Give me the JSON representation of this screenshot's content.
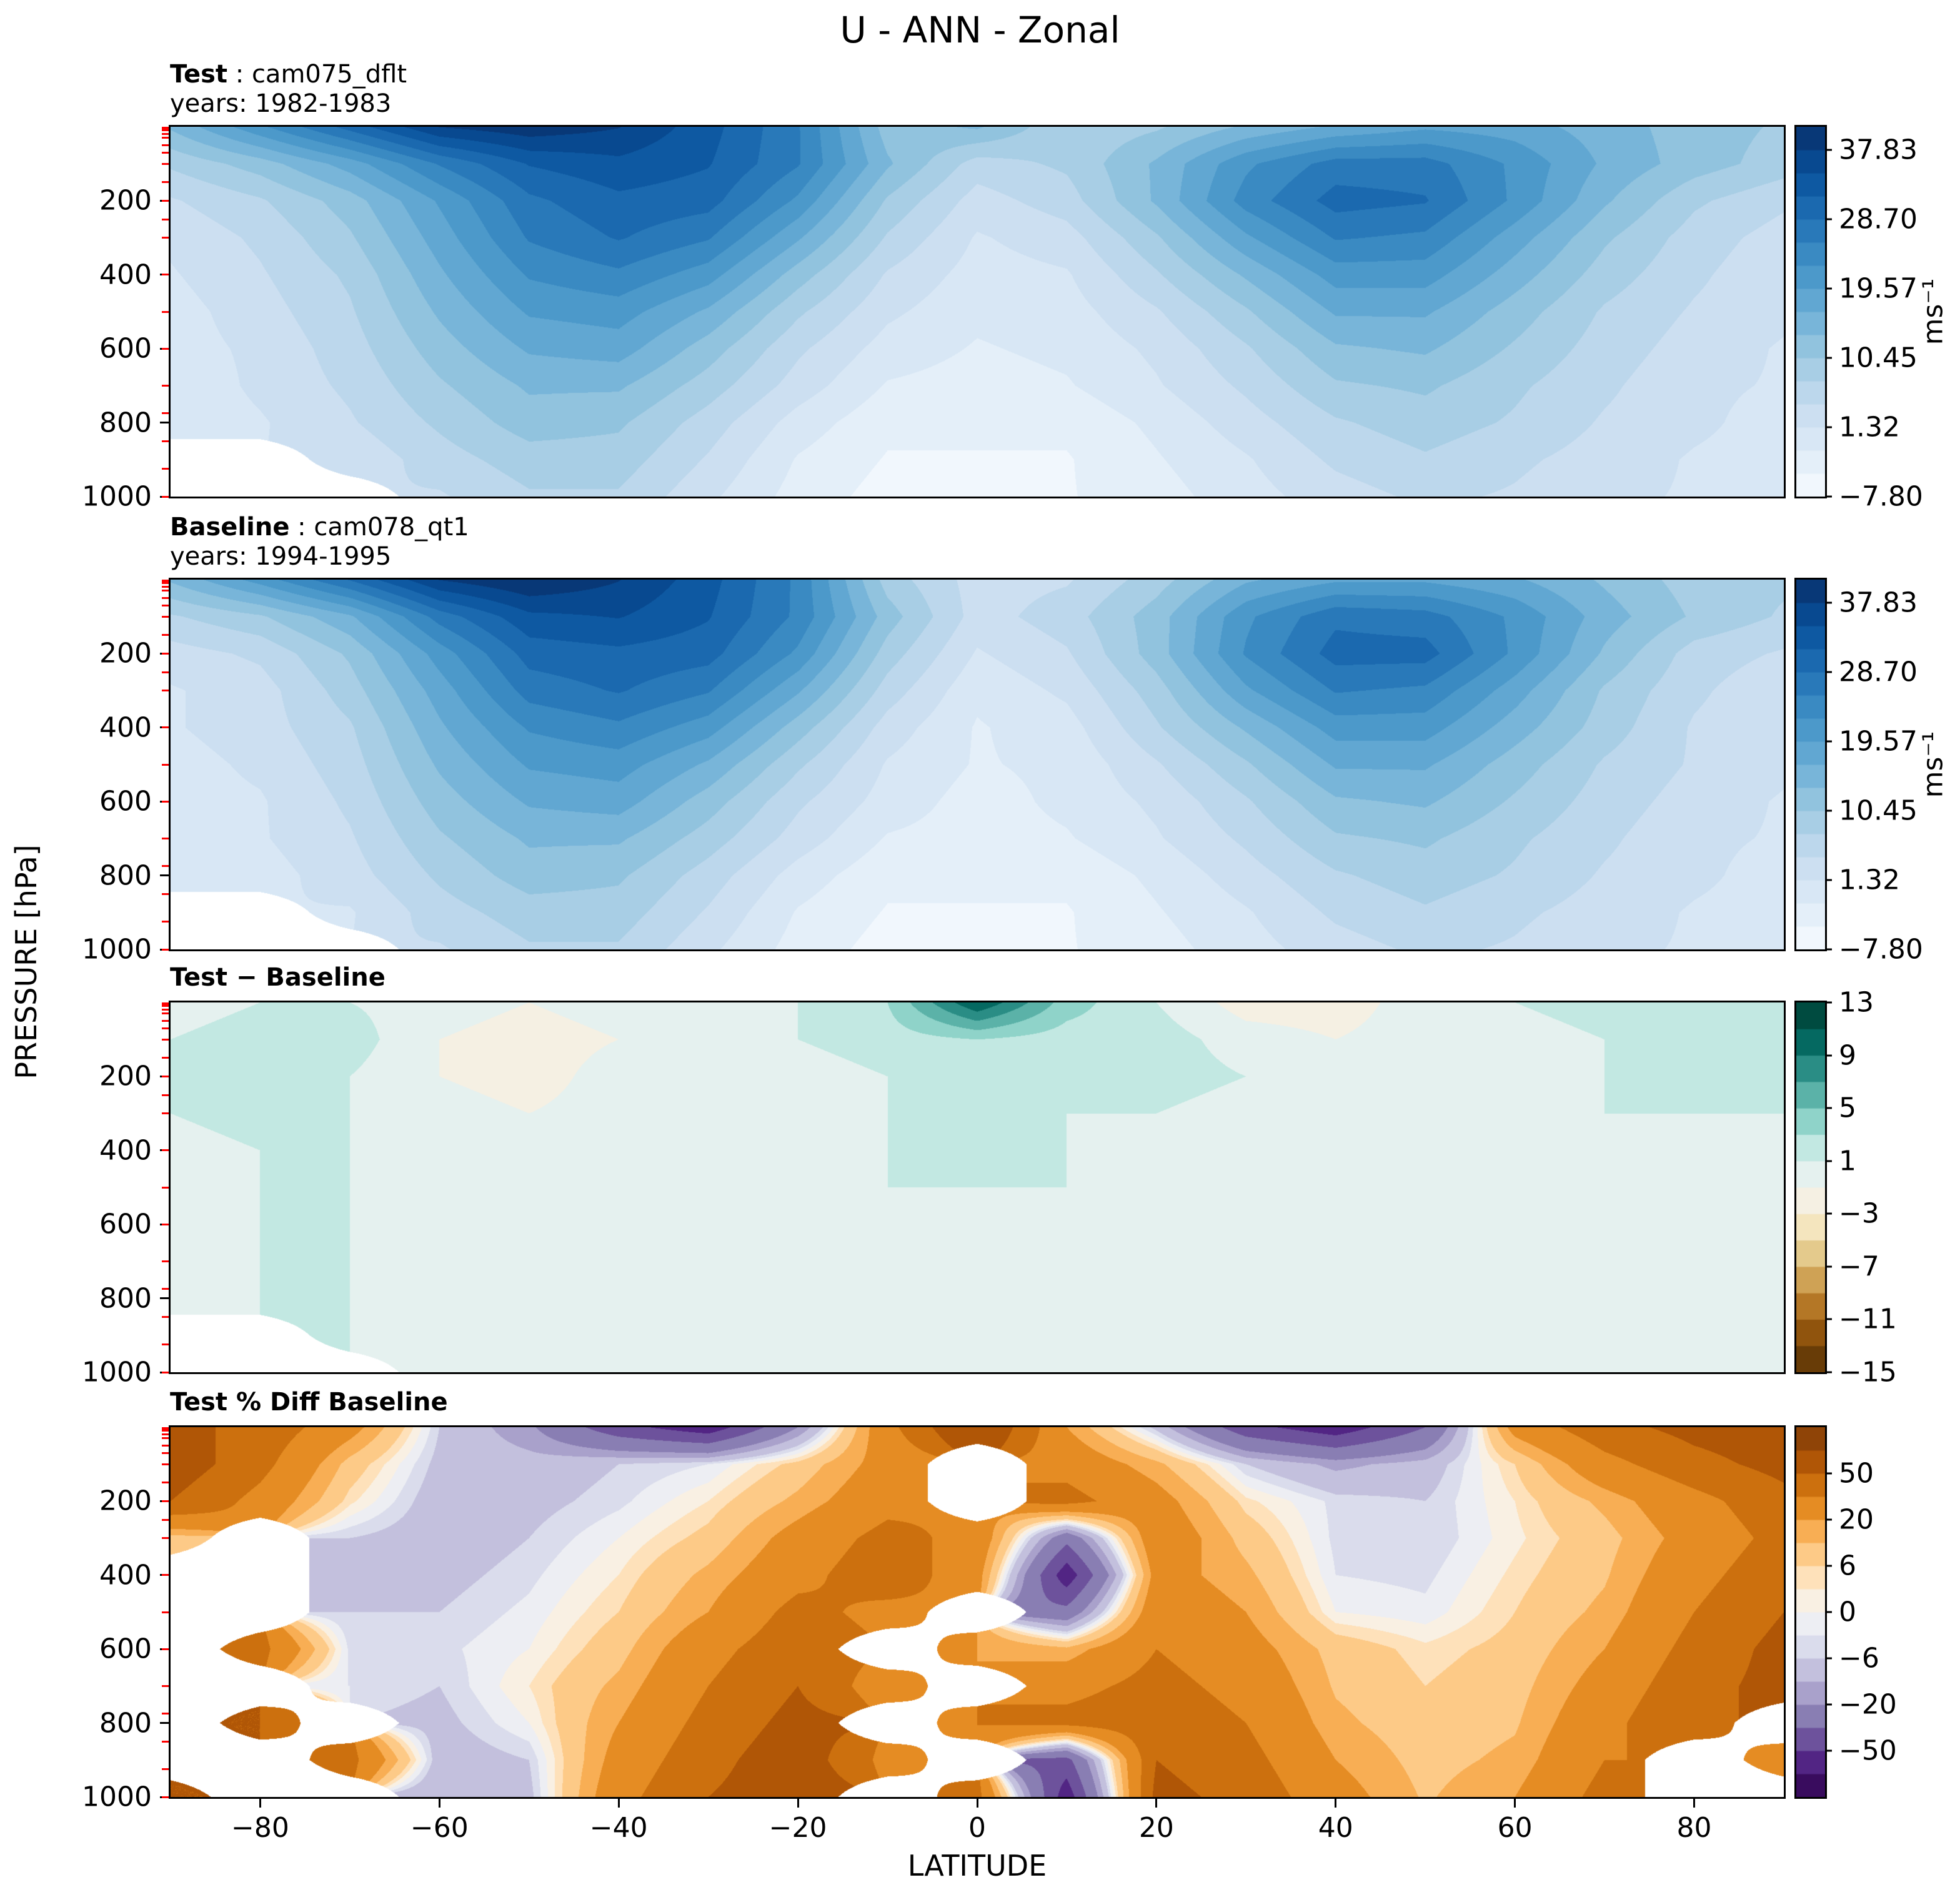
{
  "title": "U - ANN - Zonal",
  "axis": {
    "x_label": "LATITUDE",
    "y_label": "PRESSURE [hPa]",
    "x_range": [
      -90,
      90
    ],
    "y_range": [
      0,
      1000
    ],
    "x_ticks": [
      {
        "v": -80,
        "label": "−80"
      },
      {
        "v": -60,
        "label": "−60"
      },
      {
        "v": -40,
        "label": "−40"
      },
      {
        "v": -20,
        "label": "−20"
      },
      {
        "v": 0,
        "label": "0"
      },
      {
        "v": 20,
        "label": "20"
      },
      {
        "v": 40,
        "label": "40"
      },
      {
        "v": 60,
        "label": "60"
      },
      {
        "v": 80,
        "label": "80"
      }
    ],
    "y_ticks": [
      {
        "v": 200,
        "label": "200"
      },
      {
        "v": 400,
        "label": "400"
      },
      {
        "v": 600,
        "label": "600"
      },
      {
        "v": 800,
        "label": "800"
      },
      {
        "v": 1000,
        "label": "1000"
      }
    ],
    "red_tick_pressures": [
      1,
      2,
      3,
      5,
      7,
      10,
      20,
      30,
      50,
      70,
      100,
      150,
      200,
      250,
      300,
      400,
      500,
      600,
      700,
      775,
      850,
      925,
      1000
    ]
  },
  "colors": {
    "model_level_tick": "#ff0000",
    "axis": "#000000",
    "background": "#ffffff"
  },
  "colormaps": {
    "blues": [
      "#f7fbff",
      "#deebf7",
      "#c6dbef",
      "#9ecae1",
      "#6baed6",
      "#4292c6",
      "#2171b5",
      "#08519c",
      "#08306b"
    ],
    "brbg": [
      "#543005",
      "#8c510a",
      "#bf812d",
      "#dfc27d",
      "#f6e8c3",
      "#f5f5f5",
      "#c7eae5",
      "#80cdc1",
      "#35978f",
      "#01665e",
      "#003c30"
    ],
    "puor_r": [
      "#2d004b",
      "#542788",
      "#8073ac",
      "#b2abd2",
      "#d8daeb",
      "#f7f7f7",
      "#fee0b6",
      "#fdb863",
      "#e08214",
      "#b35806",
      "#7f3b08"
    ]
  },
  "chart_data": [
    {
      "id": "test",
      "type": "heatmap",
      "style": "filled-contour",
      "header_bold": "Test",
      "header_rest": " : cam075_dflt",
      "subheader": "years: 1982-1983",
      "colormap": "blues",
      "levels_min": -7.8,
      "levels_max": 40.89,
      "n_bands": 16,
      "colorbar_ticks": [
        {
          "v": 37.83,
          "label": "37.83"
        },
        {
          "v": 28.7,
          "label": "28.70"
        },
        {
          "v": 19.57,
          "label": "19.57"
        },
        {
          "v": 10.45,
          "label": "10.45"
        },
        {
          "v": 1.32,
          "label": "1.32"
        },
        {
          "v": -7.8,
          "label": "−7.80"
        }
      ],
      "colorbar_unit": "ms⁻¹",
      "show_x_ticks": false,
      "lats": [
        -90,
        -80,
        -70,
        -60,
        -50,
        -40,
        -30,
        -20,
        -10,
        0,
        10,
        20,
        30,
        40,
        50,
        60,
        70,
        80,
        90
      ],
      "pressures": [
        0,
        100,
        200,
        300,
        400,
        500,
        600,
        700,
        800,
        900,
        1000
      ],
      "values": [
        [
          14,
          22,
          30,
          38,
          40,
          38,
          33,
          26,
          12,
          14,
          8,
          10,
          14,
          17,
          19,
          18,
          15,
          12,
          10
        ],
        [
          8,
          12,
          18,
          26,
          32,
          34,
          32,
          26,
          14,
          6,
          8,
          14,
          22,
          27,
          27,
          22,
          16,
          12,
          9
        ],
        [
          4,
          7,
          12,
          20,
          28,
          31,
          30,
          22,
          10,
          3,
          6,
          14,
          24,
          30,
          29,
          22,
          14,
          8,
          5
        ],
        [
          2,
          5,
          10,
          18,
          26,
          29,
          26,
          17,
          7,
          1,
          3,
          10,
          19,
          26,
          25,
          18,
          11,
          6,
          3
        ],
        [
          1,
          4,
          8,
          16,
          23,
          25,
          21,
          12,
          4,
          0,
          1,
          7,
          14,
          21,
          21,
          15,
          9,
          5,
          2
        ],
        [
          0,
          3,
          7,
          14,
          20,
          21,
          16,
          8,
          2,
          -1,
          0,
          4,
          10,
          17,
          17,
          12,
          7,
          4,
          2
        ],
        [
          0,
          2,
          6,
          12,
          17,
          18,
          12,
          5,
          0,
          -2,
          -1,
          2,
          7,
          13,
          14,
          10,
          6,
          3,
          1
        ],
        [
          -1,
          2,
          5,
          10,
          14,
          14,
          9,
          3,
          -2,
          -3,
          -2,
          1,
          5,
          10,
          11,
          8,
          5,
          2,
          1
        ],
        [
          -1,
          1,
          4,
          8,
          12,
          11,
          6,
          0,
          -4,
          -4,
          -4,
          -1,
          3,
          7,
          9,
          7,
          4,
          2,
          0
        ],
        [
          null,
          null,
          2,
          6,
          9,
          9,
          4,
          -2,
          -5,
          -5,
          -5,
          -2,
          1,
          5,
          7,
          5,
          3,
          1,
          0
        ],
        [
          null,
          null,
          null,
          4,
          7,
          7,
          2,
          -3,
          -6,
          -5,
          -5,
          -3,
          0,
          3,
          5,
          4,
          2,
          1,
          -1
        ]
      ]
    },
    {
      "id": "baseline",
      "type": "heatmap",
      "style": "filled-contour",
      "header_bold": "Baseline",
      "header_rest": " : cam078_qt1",
      "subheader": "years: 1994-1995",
      "colormap": "blues",
      "levels_min": -7.8,
      "levels_max": 40.89,
      "n_bands": 16,
      "colorbar_ticks": [
        {
          "v": 37.83,
          "label": "37.83"
        },
        {
          "v": 28.7,
          "label": "28.70"
        },
        {
          "v": 19.57,
          "label": "19.57"
        },
        {
          "v": 10.45,
          "label": "10.45"
        },
        {
          "v": 1.32,
          "label": "1.32"
        },
        {
          "v": -7.8,
          "label": "−7.80"
        }
      ],
      "colorbar_unit": "ms⁻¹",
      "show_x_ticks": false,
      "lats": [
        -90,
        -80,
        -70,
        -60,
        -50,
        -40,
        -30,
        -20,
        -10,
        0,
        10,
        20,
        30,
        40,
        50,
        60,
        70,
        80,
        90
      ],
      "pressures": [
        0,
        100,
        200,
        300,
        400,
        500,
        600,
        700,
        800,
        900,
        1000
      ],
      "values": [
        [
          14,
          21,
          29,
          38,
          41,
          38,
          33,
          25,
          9,
          3,
          4,
          9,
          16,
          19,
          19,
          17,
          13,
          9,
          8
        ],
        [
          7,
          10,
          16,
          27,
          34,
          35,
          32,
          25,
          12,
          3,
          6,
          12,
          22,
          28,
          27,
          22,
          15,
          10,
          7
        ],
        [
          3,
          5,
          11,
          21,
          30,
          31,
          30,
          22,
          9,
          1,
          4,
          12,
          23,
          30,
          30,
          22,
          13,
          6,
          4
        ],
        [
          1,
          3,
          9,
          18,
          27,
          29,
          26,
          17,
          6,
          -1,
          2,
          9,
          19,
          26,
          25,
          18,
          10,
          5,
          2
        ],
        [
          1,
          3,
          7,
          16,
          23,
          25,
          21,
          12,
          3,
          -2,
          0,
          7,
          14,
          21,
          21,
          15,
          9,
          4,
          2
        ],
        [
          0,
          2,
          6,
          14,
          20,
          21,
          16,
          8,
          1,
          -2,
          -1,
          4,
          10,
          17,
          17,
          12,
          7,
          4,
          2
        ],
        [
          0,
          1,
          5,
          12,
          17,
          18,
          12,
          5,
          0,
          -3,
          -1,
          2,
          7,
          13,
          14,
          10,
          6,
          3,
          1
        ],
        [
          -1,
          1,
          4,
          10,
          14,
          14,
          9,
          3,
          -2,
          -3,
          -2,
          1,
          5,
          10,
          11,
          8,
          5,
          2,
          1
        ],
        [
          -1,
          0,
          3,
          8,
          12,
          11,
          6,
          0,
          -4,
          -4,
          -4,
          -1,
          3,
          7,
          9,
          7,
          4,
          2,
          0
        ],
        [
          null,
          null,
          1,
          6,
          9,
          9,
          4,
          -2,
          -5,
          -5,
          -5,
          -2,
          1,
          5,
          7,
          5,
          3,
          1,
          0
        ],
        [
          null,
          null,
          null,
          4,
          7,
          7,
          2,
          -3,
          -6,
          -5,
          -5,
          -3,
          0,
          3,
          5,
          4,
          2,
          1,
          -1
        ]
      ]
    },
    {
      "id": "diff",
      "type": "heatmap",
      "style": "filled-contour",
      "header_bold": "Test − Baseline",
      "header_rest": "",
      "subheader": "",
      "colormap": "brbg",
      "levels_min": -15,
      "levels_max": 13,
      "n_bands": 14,
      "colorbar_ticks": [
        {
          "v": 13,
          "label": "13"
        },
        {
          "v": 9,
          "label": "9"
        },
        {
          "v": 5,
          "label": "5"
        },
        {
          "v": 1,
          "label": "1"
        },
        {
          "v": -3,
          "label": "−3"
        },
        {
          "v": -7,
          "label": "−7"
        },
        {
          "v": -11,
          "label": "−11"
        },
        {
          "v": -15,
          "label": "−15"
        }
      ],
      "colorbar_unit": "",
      "show_x_ticks": false,
      "lats": [
        -90,
        -80,
        -70,
        -60,
        -50,
        -40,
        -30,
        -20,
        -10,
        0,
        10,
        20,
        30,
        40,
        50,
        60,
        70,
        80,
        90
      ],
      "pressures": [
        0,
        100,
        200,
        300,
        400,
        500,
        600,
        700,
        800,
        900,
        1000
      ],
      "values": [
        [
          0,
          1,
          1,
          0,
          -1,
          0,
          0,
          1,
          3,
          11,
          4,
          1,
          -2,
          -2,
          0,
          1,
          2,
          3,
          2
        ],
        [
          1,
          2,
          2,
          -1,
          -2,
          -1,
          0,
          1,
          2,
          3,
          2,
          2,
          0,
          -1,
          0,
          0,
          1,
          2,
          2
        ],
        [
          1,
          2,
          1,
          -1,
          -2,
          0,
          0,
          0,
          1,
          2,
          2,
          2,
          1,
          0,
          -1,
          0,
          1,
          2,
          1
        ],
        [
          1,
          2,
          1,
          0,
          -1,
          0,
          0,
          0,
          1,
          2,
          1,
          1,
          0,
          0,
          0,
          0,
          1,
          1,
          1
        ],
        [
          0,
          1,
          1,
          0,
          0,
          0,
          0,
          0,
          1,
          2,
          1,
          0,
          0,
          0,
          0,
          0,
          0,
          1,
          0
        ],
        [
          0,
          1,
          1,
          0,
          0,
          0,
          0,
          0,
          1,
          1,
          1,
          0,
          0,
          0,
          0,
          0,
          0,
          0,
          0
        ],
        [
          0,
          1,
          1,
          0,
          0,
          0,
          0,
          0,
          0,
          1,
          0,
          0,
          0,
          0,
          0,
          0,
          0,
          0,
          0
        ],
        [
          0,
          1,
          1,
          0,
          0,
          0,
          0,
          0,
          0,
          0,
          0,
          0,
          0,
          0,
          0,
          0,
          0,
          0,
          0
        ],
        [
          0,
          1,
          1,
          0,
          0,
          0,
          0,
          0,
          0,
          0,
          0,
          0,
          0,
          0,
          0,
          0,
          0,
          0,
          0
        ],
        [
          null,
          null,
          1,
          0,
          0,
          0,
          0,
          0,
          0,
          0,
          0,
          0,
          0,
          0,
          0,
          0,
          0,
          0,
          0
        ],
        [
          null,
          null,
          null,
          0,
          0,
          0,
          0,
          0,
          0,
          0,
          0,
          0,
          0,
          0,
          0,
          0,
          0,
          0,
          0
        ]
      ]
    },
    {
      "id": "pctdiff",
      "type": "heatmap",
      "style": "filled-contour",
      "header_bold": "Test % Diff Baseline",
      "header_rest": "",
      "subheader": "",
      "colormap": "puor_r",
      "levels": [
        -100,
        -75,
        -50,
        -35,
        -20,
        -13,
        -6,
        -3,
        0,
        3,
        6,
        13,
        20,
        35,
        50,
        75,
        100
      ],
      "colorbar_ticks": [
        {
          "v": 50,
          "label": "50"
        },
        {
          "v": 20,
          "label": "20"
        },
        {
          "v": 6,
          "label": "6"
        },
        {
          "v": 0,
          "label": "0"
        },
        {
          "v": -6,
          "label": "−6"
        },
        {
          "v": -20,
          "label": "−20"
        },
        {
          "v": -50,
          "label": "−50"
        }
      ],
      "colorbar_unit": "",
      "show_x_ticks": true,
      "lats": [
        -90,
        -80,
        -70,
        -60,
        -50,
        -40,
        -30,
        -20,
        -10,
        0,
        10,
        20,
        30,
        40,
        50,
        60,
        70,
        80,
        90
      ],
      "pressures": [
        0,
        100,
        200,
        300,
        400,
        500,
        600,
        700,
        800,
        900,
        1000
      ],
      "values": [
        [
          55,
          45,
          25,
          -6,
          -18,
          -45,
          -60,
          -20,
          30,
          70,
          20,
          -8,
          -45,
          -60,
          -35,
          25,
          45,
          55,
          60
        ],
        [
          60,
          40,
          10,
          -8,
          -10,
          -6,
          -3,
          8,
          25,
          null,
          30,
          15,
          -6,
          -15,
          -10,
          6,
          30,
          45,
          55
        ],
        [
          50,
          30,
          4,
          -10,
          -8,
          -4,
          3,
          15,
          30,
          null,
          40,
          25,
          4,
          -4,
          -6,
          3,
          15,
          30,
          45
        ],
        [
          10,
          null,
          -6,
          -10,
          -6,
          0,
          8,
          25,
          40,
          30,
          -30,
          30,
          10,
          -4,
          -6,
          2,
          10,
          25,
          40
        ],
        [
          null,
          null,
          -8,
          -8,
          -4,
          3,
          15,
          30,
          45,
          25,
          -60,
          25,
          15,
          -3,
          -4,
          4,
          12,
          30,
          45
        ],
        [
          null,
          null,
          -6,
          -6,
          -2,
          6,
          20,
          40,
          30,
          null,
          -30,
          30,
          20,
          0,
          -2,
          6,
          15,
          35,
          50
        ],
        [
          null,
          40,
          -4,
          -4,
          0,
          10,
          30,
          45,
          null,
          20,
          15,
          35,
          25,
          10,
          4,
          8,
          20,
          40,
          55
        ],
        [
          null,
          null,
          -3,
          -6,
          3,
          15,
          35,
          50,
          25,
          null,
          30,
          40,
          30,
          12,
          6,
          10,
          25,
          45,
          55
        ],
        [
          null,
          50,
          null,
          -8,
          0,
          20,
          40,
          55,
          null,
          35,
          40,
          45,
          35,
          15,
          8,
          12,
          30,
          50,
          null
        ],
        [
          null,
          null,
          40,
          -10,
          -6,
          25,
          45,
          60,
          30,
          null,
          -40,
          50,
          40,
          20,
          10,
          15,
          35,
          null,
          30
        ],
        [
          50,
          null,
          null,
          -12,
          -8,
          30,
          50,
          60,
          null,
          40,
          -60,
          55,
          45,
          25,
          12,
          20,
          40,
          null,
          null
        ]
      ]
    }
  ]
}
